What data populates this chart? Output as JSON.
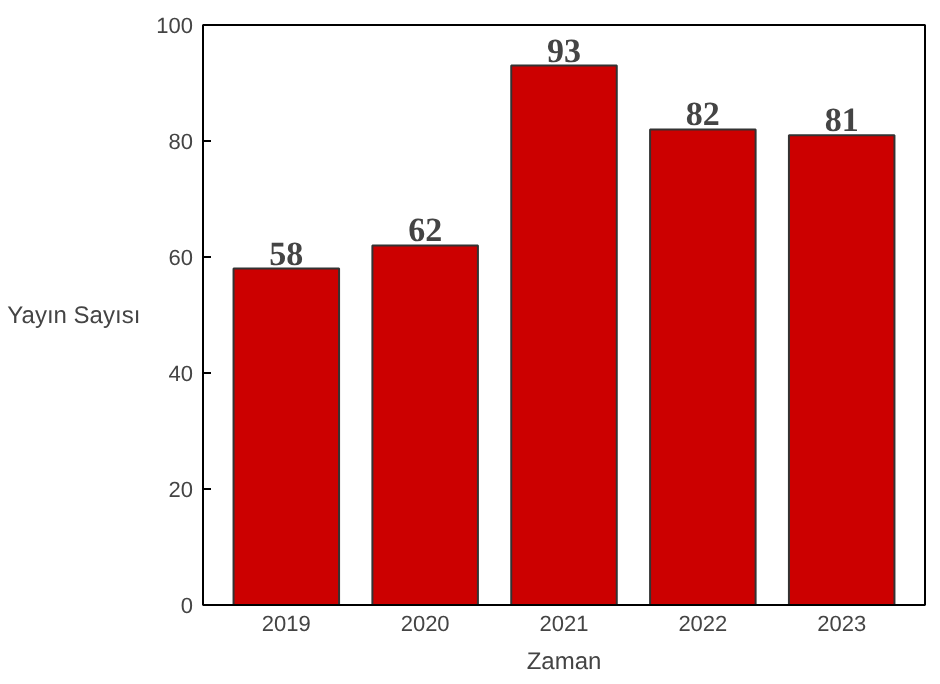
{
  "chart_data": {
    "type": "bar",
    "xlabel": "Zaman",
    "ylabel": "Yayın Sayısı",
    "categories": [
      "2019",
      "2020",
      "2021",
      "2022",
      "2023"
    ],
    "values": [
      58,
      62,
      93,
      82,
      81
    ],
    "color": "#cc0000",
    "ylim": [
      0,
      100
    ],
    "yticks": [
      0,
      20,
      40,
      60,
      80,
      100
    ],
    "data_labels": true
  }
}
